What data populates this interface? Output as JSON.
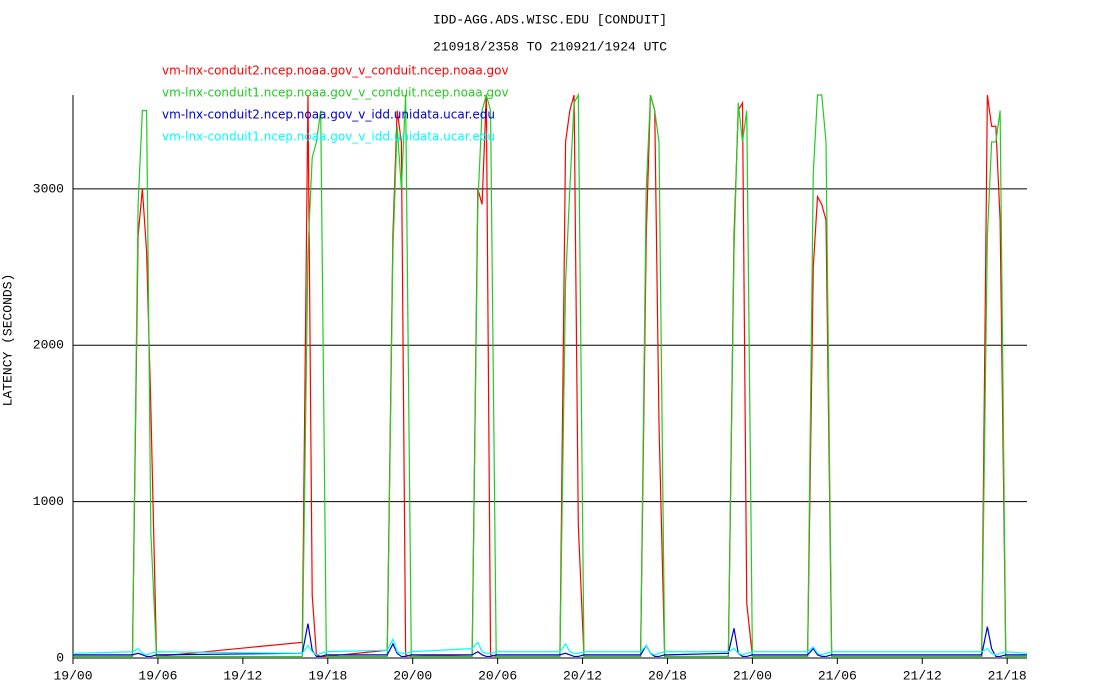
{
  "chart_data": {
    "type": "line",
    "title": "IDD-AGG.ADS.WISC.EDU [CONDUIT]",
    "subtitle": "210918/2358 TO 210921/1924 UTC",
    "y_label": "LATENCY (SECONDS)",
    "x": [
      0,
      4.2,
      4.6,
      4.9,
      5.2,
      5.5,
      5.9,
      16.2,
      16.6,
      16.9,
      17.2,
      17.5,
      17.9,
      22.2,
      22.6,
      22.9,
      23.2,
      23.5,
      23.9,
      28.2,
      28.6,
      28.9,
      29.2,
      29.5,
      29.9,
      34.4,
      34.8,
      35.1,
      35.4,
      35.7,
      36.1,
      40.1,
      40.5,
      40.8,
      41.1,
      41.4,
      41.8,
      46.3,
      46.7,
      47.0,
      47.3,
      47.6,
      48.0,
      51.9,
      52.3,
      52.6,
      52.9,
      53.2,
      53.6,
      64.2,
      64.6,
      64.9,
      65.2,
      65.5,
      65.9,
      67.4
    ],
    "series": [
      {
        "name": "vm-lnx-conduit2.ncep.noaa.gov_v_conduit.ncep.noaa.gov",
        "color": "#ff0000",
        "values": [
          10,
          10,
          2700,
          3000,
          2600,
          1600,
          10,
          100,
          3600,
          400,
          20,
          10,
          10,
          50,
          2700,
          3500,
          3300,
          20,
          10,
          20,
          3000,
          2900,
          3600,
          20,
          10,
          10,
          3300,
          3500,
          3600,
          850,
          10,
          10,
          2700,
          3600,
          3500,
          1500,
          10,
          10,
          2700,
          3500,
          3550,
          350,
          10,
          10,
          2500,
          2950,
          2900,
          2800,
          10,
          10,
          3600,
          3400,
          3400,
          2800,
          10,
          10
        ]
      },
      {
        "name": "vm-lnx-conduit1.ncep.noaa.gov_v_conduit.ncep.noaa.gov",
        "color": "#22cc22",
        "values": [
          10,
          10,
          2900,
          3500,
          3500,
          800,
          10,
          10,
          2600,
          3200,
          3300,
          3500,
          10,
          10,
          2600,
          3400,
          3000,
          3600,
          10,
          10,
          2900,
          3500,
          3600,
          3500,
          10,
          10,
          2400,
          3000,
          3550,
          3600,
          10,
          10,
          3000,
          3600,
          3500,
          3300,
          10,
          10,
          2600,
          3550,
          3300,
          3500,
          10,
          10,
          3100,
          3600,
          3600,
          3300,
          10,
          10,
          2700,
          3300,
          3300,
          3500,
          10,
          10
        ]
      },
      {
        "name": "vm-lnx-conduit2.ncep.noaa.gov_v_idd.unidata.ucar.edu",
        "color": "#0000cc",
        "values": [
          20,
          20,
          30,
          20,
          10,
          10,
          20,
          30,
          220,
          50,
          10,
          10,
          20,
          20,
          90,
          30,
          10,
          10,
          20,
          20,
          40,
          20,
          10,
          10,
          20,
          20,
          30,
          20,
          10,
          10,
          20,
          20,
          80,
          30,
          10,
          10,
          20,
          30,
          190,
          30,
          10,
          10,
          20,
          20,
          60,
          20,
          10,
          10,
          20,
          20,
          200,
          60,
          10,
          10,
          20,
          20
        ]
      },
      {
        "name": "vm-lnx-conduit1.ncep.noaa.gov_v_idd.unidata.ucar.edu",
        "color": "#00ffff",
        "values": [
          30,
          40,
          60,
          30,
          20,
          30,
          40,
          30,
          80,
          40,
          20,
          30,
          40,
          50,
          120,
          40,
          30,
          30,
          40,
          60,
          100,
          40,
          30,
          30,
          40,
          40,
          90,
          40,
          30,
          30,
          40,
          40,
          80,
          30,
          20,
          30,
          40,
          40,
          60,
          30,
          20,
          30,
          40,
          40,
          70,
          30,
          20,
          30,
          40,
          40,
          60,
          30,
          20,
          30,
          40,
          30
        ]
      }
    ],
    "xlim": [
      0,
      67.4
    ],
    "xticks": [
      {
        "value": 0,
        "label": "19/00"
      },
      {
        "value": 6,
        "label": "19/06"
      },
      {
        "value": 12,
        "label": "19/12"
      },
      {
        "value": 18,
        "label": "19/18"
      },
      {
        "value": 24,
        "label": "20/00"
      },
      {
        "value": 30,
        "label": "20/06"
      },
      {
        "value": 36,
        "label": "20/12"
      },
      {
        "value": 42,
        "label": "20/18"
      },
      {
        "value": 48,
        "label": "21/00"
      },
      {
        "value": 54,
        "label": "21/06"
      },
      {
        "value": 60,
        "label": "21/12"
      },
      {
        "value": 66,
        "label": "21/18"
      }
    ],
    "ylim": [
      0,
      3600
    ],
    "yticks": [
      0,
      1000,
      2000,
      3000
    ],
    "grid": true
  }
}
